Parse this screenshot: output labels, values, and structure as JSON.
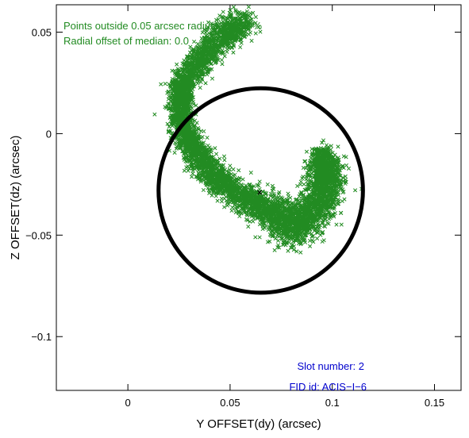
{
  "chart_data": {
    "type": "scatter",
    "xlabel": "Y OFFSET(dy) (arcsec)",
    "ylabel": "Z OFFSET(dz) (arcsec)",
    "xlim": [
      -0.035,
      0.163
    ],
    "ylim": [
      -0.1265,
      0.0635
    ],
    "x_ticks": [
      0,
      0.05,
      0.1,
      0.15
    ],
    "x_tick_labels": [
      "0",
      "0.05",
      "0.1",
      "0.15"
    ],
    "y_ticks": [
      -0.1,
      -0.05,
      0,
      0.05
    ],
    "y_tick_labels": [
      "−0.1",
      "−0.05",
      "0",
      "0.05"
    ],
    "grid": false,
    "annotations": {
      "outside_text": "Points outside 0.05 arcsec radius: 26.529%",
      "median_text": "Radial offset of median: 0.0",
      "slot_text": "Slot number: 2",
      "fid_text": "FID id: ACIS−I−6"
    },
    "series": [
      {
        "marker": "x",
        "color": "#228b22",
        "point_count": 6000,
        "path": [
          {
            "x": 0.057,
            "y": 0.055
          },
          {
            "x": 0.046,
            "y": 0.048
          },
          {
            "x": 0.036,
            "y": 0.037
          },
          {
            "x": 0.027,
            "y": 0.025
          },
          {
            "x": 0.025,
            "y": 0.013
          },
          {
            "x": 0.028,
            "y": 0.0
          },
          {
            "x": 0.034,
            "y": -0.011
          },
          {
            "x": 0.043,
            "y": -0.022
          },
          {
            "x": 0.054,
            "y": -0.03
          },
          {
            "x": 0.066,
            "y": -0.036
          },
          {
            "x": 0.076,
            "y": -0.042
          },
          {
            "x": 0.082,
            "y": -0.047
          },
          {
            "x": 0.091,
            "y": -0.038
          },
          {
            "x": 0.096,
            "y": -0.027
          },
          {
            "x": 0.097,
            "y": -0.018
          },
          {
            "x": 0.095,
            "y": -0.01
          }
        ],
        "spread": [
          0.0065,
          0.0065,
          0.006,
          0.0055,
          0.005,
          0.005,
          0.0055,
          0.006,
          0.0065,
          0.007,
          0.0085,
          0.009,
          0.0085,
          0.008,
          0.007,
          0.0055
        ]
      }
    ],
    "median_point": {
      "x": 0.0645,
      "y": -0.029,
      "color": "#000000"
    },
    "circle": {
      "center_x": 0.065,
      "center_y": -0.028,
      "radius": 0.05,
      "color": "#000000"
    }
  }
}
